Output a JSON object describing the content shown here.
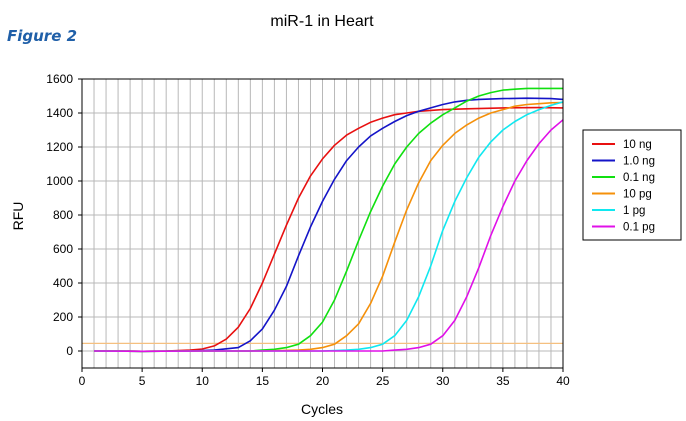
{
  "figure_label": "Figure 2",
  "chart_data": {
    "type": "line",
    "title": "miR-1 in Heart",
    "xlabel": "Cycles",
    "ylabel": "RFU",
    "xlim": [
      0,
      40
    ],
    "ylim": [
      -100,
      1600
    ],
    "xticks": [
      0,
      5,
      10,
      15,
      20,
      25,
      30,
      35,
      40
    ],
    "yticks": [
      0,
      200,
      400,
      600,
      800,
      1000,
      1200,
      1400,
      1600
    ],
    "grid": "vertical every cycle, horizontal every 200",
    "legend_position": "right",
    "threshold": {
      "y": 45,
      "color": "#f5c080"
    },
    "series": [
      {
        "name": "10 ng",
        "color": "#e81010",
        "x": [
          1,
          3,
          5,
          7,
          9,
          10,
          11,
          12,
          13,
          14,
          15,
          16,
          17,
          18,
          19,
          20,
          21,
          22,
          23,
          24,
          25,
          26,
          27,
          28,
          30,
          32,
          35,
          38,
          40
        ],
        "y": [
          0,
          0,
          -2,
          0,
          5,
          12,
          30,
          70,
          140,
          250,
          400,
          570,
          740,
          900,
          1030,
          1130,
          1210,
          1270,
          1310,
          1345,
          1370,
          1390,
          1400,
          1410,
          1420,
          1425,
          1430,
          1432,
          1430
        ]
      },
      {
        "name": "1.0 ng",
        "color": "#1414c8",
        "x": [
          1,
          5,
          9,
          11,
          13,
          14,
          15,
          16,
          17,
          18,
          19,
          20,
          21,
          22,
          23,
          24,
          25,
          26,
          27,
          28,
          29,
          30,
          31,
          32,
          33,
          35,
          37,
          39,
          40
        ],
        "y": [
          0,
          -2,
          0,
          5,
          20,
          60,
          130,
          240,
          380,
          560,
          730,
          880,
          1010,
          1120,
          1200,
          1265,
          1310,
          1350,
          1385,
          1410,
          1430,
          1450,
          1465,
          1475,
          1480,
          1485,
          1487,
          1485,
          1480
        ]
      },
      {
        "name": "0.1 ng",
        "color": "#10e010",
        "x": [
          1,
          5,
          10,
          14,
          15,
          16,
          17,
          18,
          19,
          20,
          21,
          22,
          23,
          24,
          25,
          26,
          27,
          28,
          29,
          30,
          31,
          32,
          33,
          34,
          35,
          36,
          37,
          39,
          40
        ],
        "y": [
          0,
          -2,
          0,
          0,
          5,
          10,
          20,
          40,
          90,
          170,
          300,
          470,
          650,
          820,
          970,
          1100,
          1200,
          1280,
          1340,
          1390,
          1430,
          1470,
          1500,
          1520,
          1535,
          1540,
          1545,
          1545,
          1545
        ]
      },
      {
        "name": "10 pg",
        "color": "#f5900a",
        "x": [
          1,
          5,
          10,
          15,
          18,
          19,
          20,
          21,
          22,
          23,
          24,
          25,
          26,
          27,
          28,
          29,
          30,
          31,
          32,
          33,
          34,
          35,
          36,
          37,
          38,
          39,
          40
        ],
        "y": [
          0,
          -2,
          0,
          0,
          5,
          10,
          20,
          40,
          90,
          160,
          280,
          440,
          640,
          830,
          990,
          1120,
          1210,
          1280,
          1330,
          1370,
          1400,
          1420,
          1440,
          1450,
          1455,
          1460,
          1462
        ]
      },
      {
        "name": "1 pg",
        "color": "#10e8f0",
        "x": [
          1,
          5,
          10,
          15,
          20,
          22,
          23,
          24,
          25,
          26,
          27,
          28,
          29,
          30,
          31,
          32,
          33,
          34,
          35,
          36,
          37,
          38,
          39,
          40
        ],
        "y": [
          0,
          -2,
          0,
          0,
          0,
          5,
          10,
          20,
          40,
          90,
          180,
          320,
          500,
          710,
          880,
          1020,
          1140,
          1230,
          1300,
          1350,
          1390,
          1420,
          1445,
          1465
        ]
      },
      {
        "name": "0.1 pg",
        "color": "#e010e8",
        "x": [
          1,
          5,
          10,
          15,
          20,
          25,
          26,
          27,
          28,
          29,
          30,
          31,
          32,
          33,
          34,
          35,
          36,
          37,
          38,
          39,
          40
        ],
        "y": [
          0,
          -2,
          0,
          0,
          0,
          0,
          5,
          10,
          20,
          40,
          90,
          180,
          320,
          490,
          680,
          850,
          1000,
          1120,
          1220,
          1300,
          1360
        ]
      }
    ]
  }
}
